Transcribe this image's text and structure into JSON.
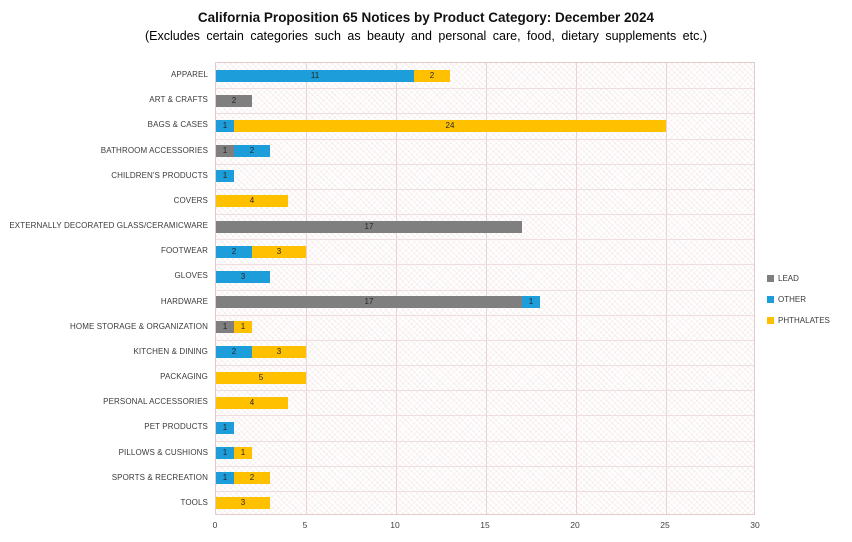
{
  "title": "California Proposition 65 Notices by Product Category: December 2024",
  "subtitle": "(Excludes certain categories such as beauty and personal care, food, dietary supplements etc.)",
  "colors": {
    "lead": "#7F7F7F",
    "other": "#1D9DD9",
    "phthalates": "#FFC000"
  },
  "chart_data": {
    "type": "bar",
    "orientation": "horizontal",
    "stacked": true,
    "title": "California Proposition 65 Notices by Product Category: December 2024",
    "subtitle": "(Excludes certain categories such as beauty and personal care, food, dietary supplements etc.)",
    "xlabel": "",
    "ylabel": "",
    "xlim": [
      0,
      30
    ],
    "x_ticks": [
      0,
      5,
      10,
      15,
      20,
      25,
      30
    ],
    "grid": true,
    "legend_position": "right",
    "categories": [
      "APPAREL",
      "ART & CRAFTS",
      "BAGS & CASES",
      "BATHROOM ACCESSORIES",
      "CHILDREN'S PRODUCTS",
      "COVERS",
      "EXTERNALLY DECORATED GLASS/CERAMICWARE",
      "FOOTWEAR",
      "GLOVES",
      "HARDWARE",
      "HOME STORAGE & ORGANIZATION",
      "KITCHEN & DINING",
      "PACKAGING",
      "PERSONAL ACCESSORIES",
      "PET PRODUCTS",
      "PILLOWS & CUSHIONS",
      "SPORTS & RECREATION",
      "TOOLS"
    ],
    "series": [
      {
        "name": "LEAD",
        "color": "#7F7F7F",
        "values": [
          0,
          2,
          0,
          1,
          0,
          0,
          17,
          0,
          0,
          17,
          1,
          0,
          0,
          0,
          0,
          0,
          0,
          0
        ]
      },
      {
        "name": "OTHER",
        "color": "#1D9DD9",
        "values": [
          11,
          0,
          1,
          2,
          1,
          0,
          0,
          2,
          3,
          1,
          0,
          2,
          0,
          0,
          1,
          1,
          1,
          0
        ]
      },
      {
        "name": "PHTHALATES",
        "color": "#FFC000",
        "values": [
          2,
          0,
          24,
          0,
          0,
          4,
          0,
          3,
          0,
          0,
          1,
          3,
          5,
          4,
          0,
          1,
          2,
          3
        ]
      }
    ]
  }
}
